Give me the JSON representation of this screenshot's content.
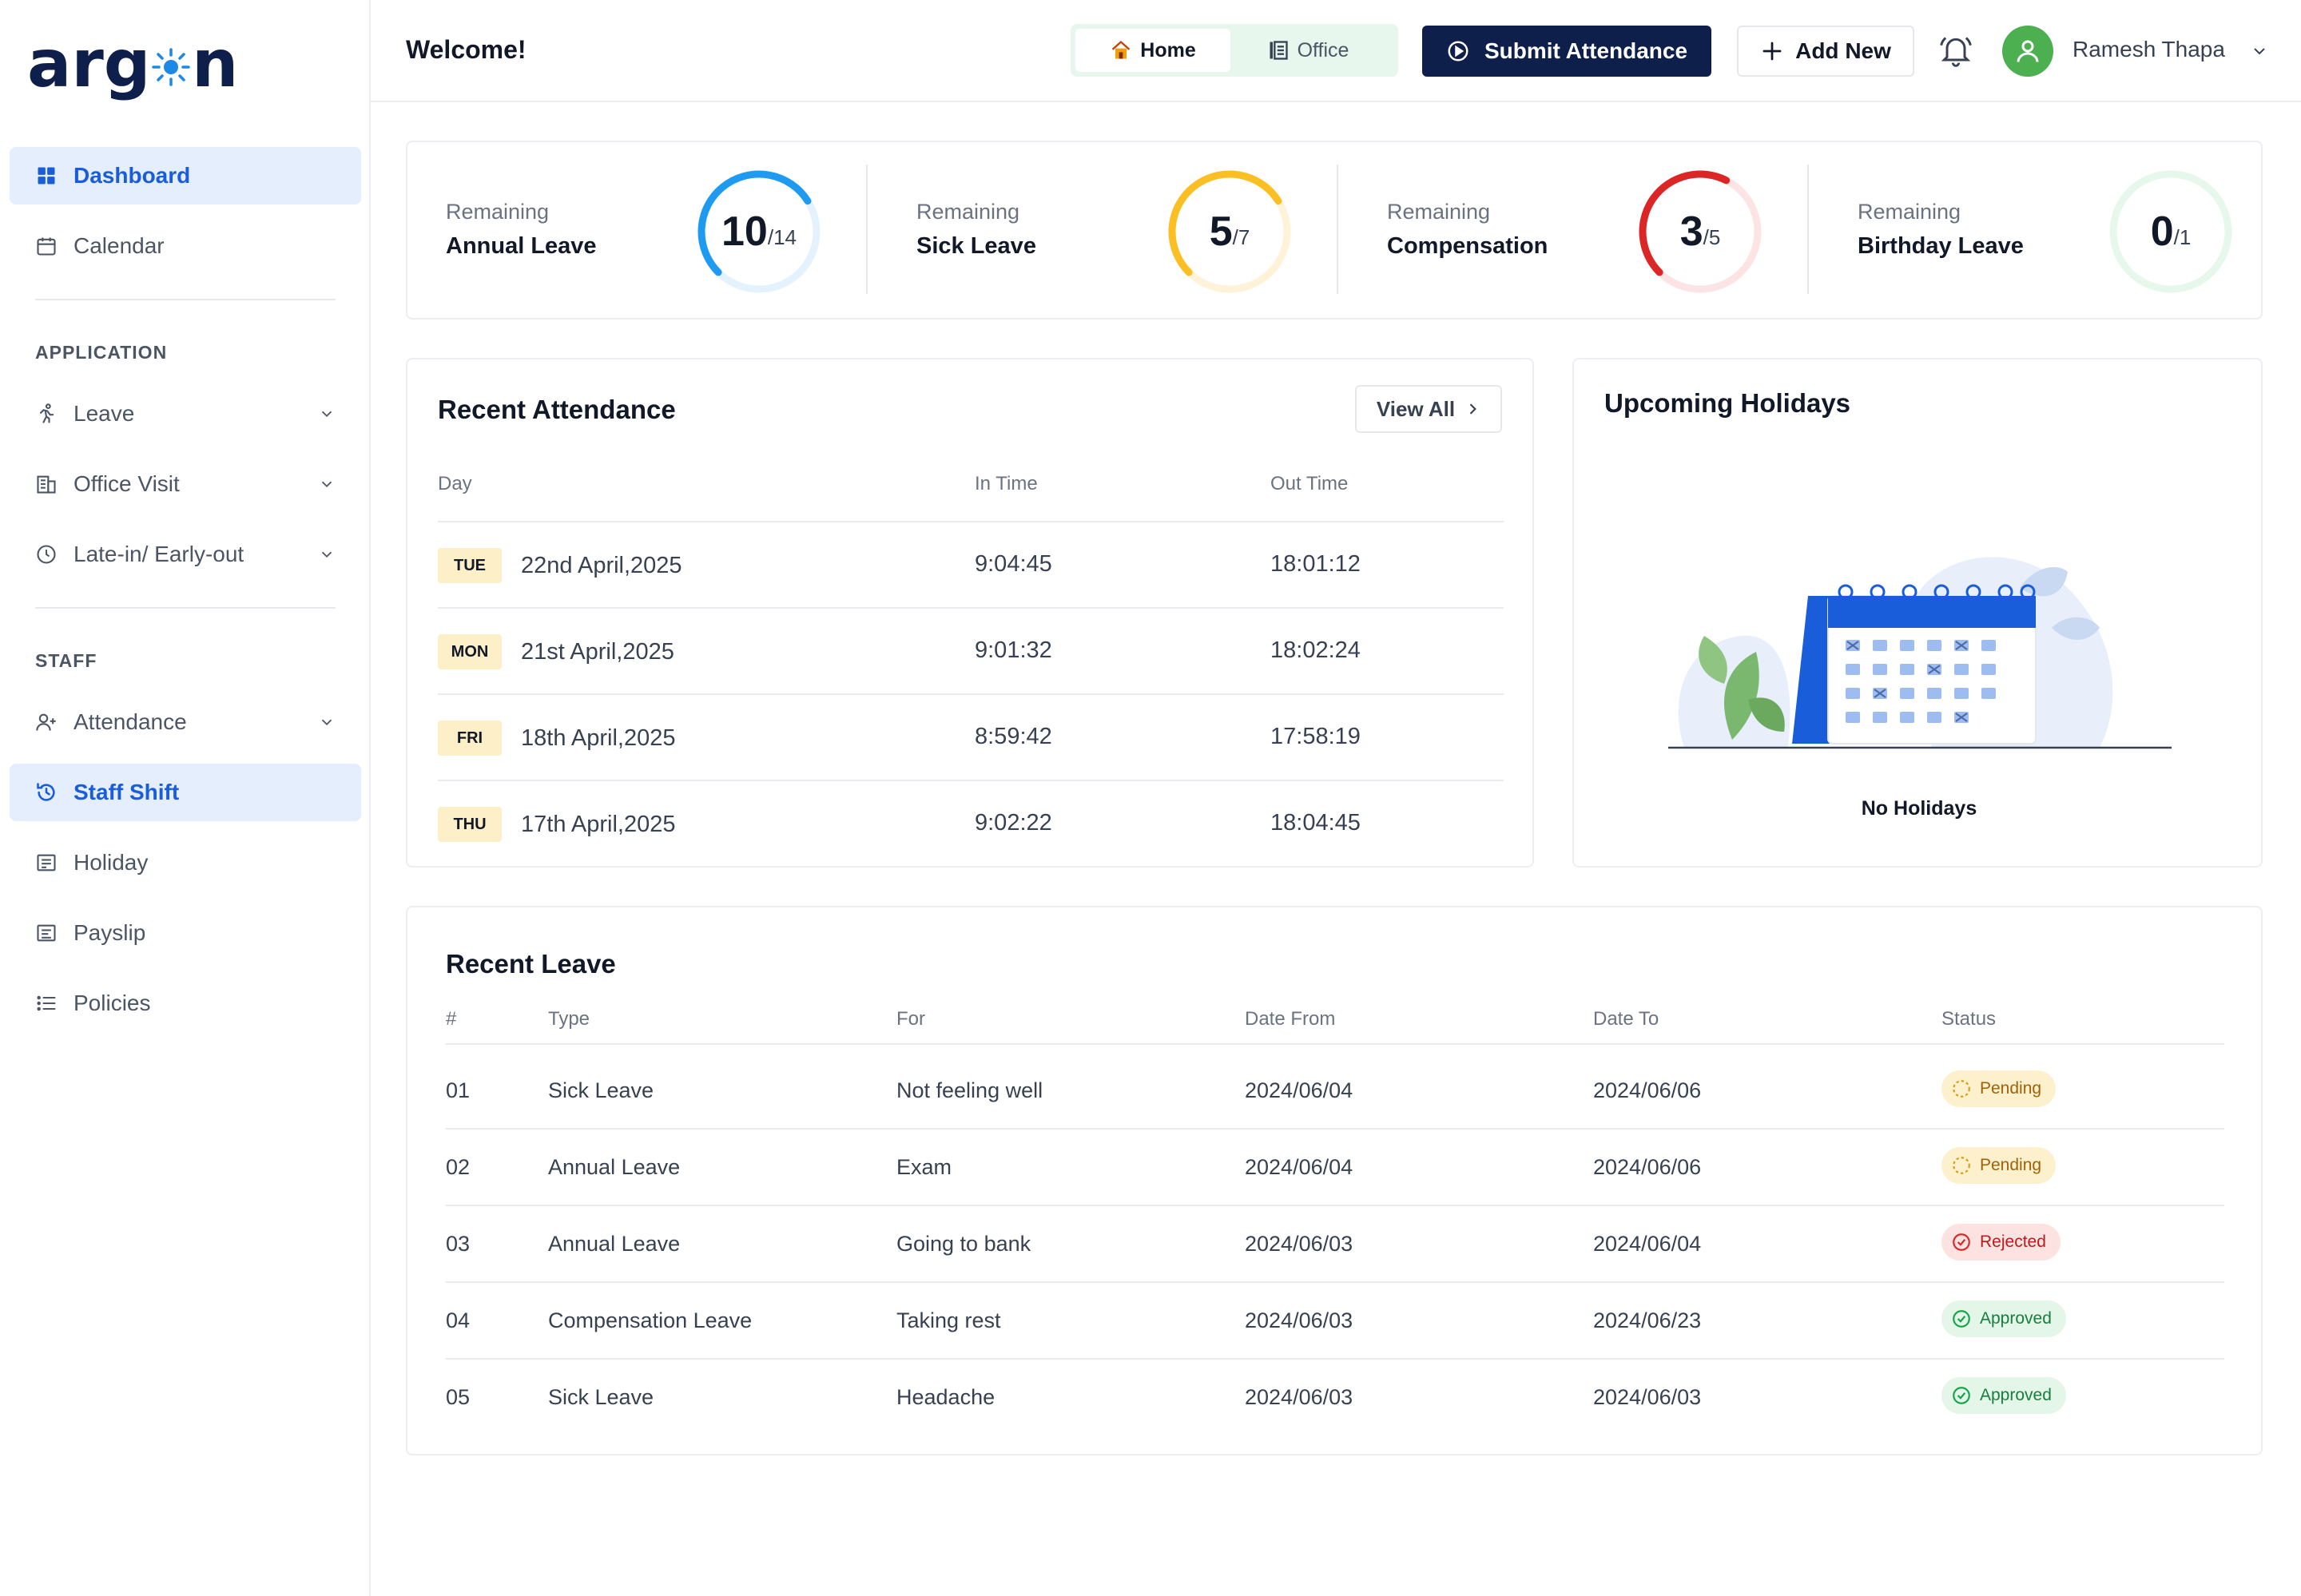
{
  "brand": {
    "logo_text_left": "arg",
    "logo_text_right": "n"
  },
  "sidebar": {
    "items_top": [
      {
        "label": "Dashboard",
        "icon": "grid-icon",
        "active": true
      },
      {
        "label": "Calendar",
        "icon": "calendar-icon",
        "active": false
      }
    ],
    "application_title": "APPLICATION",
    "application_items": [
      {
        "label": "Leave",
        "icon": "running-person-icon"
      },
      {
        "label": "Office Visit",
        "icon": "building-icon"
      },
      {
        "label": "Late-in/ Early-out",
        "icon": "clock-icon"
      }
    ],
    "staff_title": "STAFF",
    "staff_items": [
      {
        "label": "Attendance",
        "icon": "user-plus-icon",
        "active": false
      },
      {
        "label": "Staff Shift",
        "icon": "history-icon",
        "active": true
      },
      {
        "label": "Holiday",
        "icon": "list-box-icon",
        "active": false
      },
      {
        "label": "Payslip",
        "icon": "receipt-icon",
        "active": false
      },
      {
        "label": "Policies",
        "icon": "list-icon",
        "active": false
      }
    ]
  },
  "header": {
    "welcome": "Welcome!",
    "toggle": {
      "home_label": "Home",
      "office_label": "Office",
      "selected": "Home"
    },
    "submit_label": "Submit Attendance",
    "add_label": "Add New",
    "user_name": "Ramesh Thapa"
  },
  "leave_summary": [
    {
      "caption": "Remaining",
      "name": "Annual Leave",
      "remaining": "10",
      "total": "/14",
      "fraction": 0.714,
      "color": "#1e9bf0",
      "track": "#e3f2fd"
    },
    {
      "caption": "Remaining",
      "name": "Sick Leave",
      "remaining": "5",
      "total": "/7",
      "fraction": 0.714,
      "color": "#fbbf24",
      "track": "#fef3d9"
    },
    {
      "caption": "Remaining",
      "name": "Compensation",
      "remaining": "3",
      "total": "/5",
      "fraction": 0.6,
      "color": "#dc2626",
      "track": "#fde4e4"
    },
    {
      "caption": "Remaining",
      "name": "Birthday Leave",
      "remaining": "0",
      "total": "/1",
      "fraction": 0.0,
      "color": "#22c55e",
      "track": "#e6f7ec"
    }
  ],
  "attendance": {
    "title": "Recent Attendance",
    "view_all": "View All",
    "headers": {
      "day": "Day",
      "in": "In Time",
      "out": "Out Time"
    },
    "rows": [
      {
        "dow": "TUE",
        "date": "22nd April,2025",
        "in": "9:04:45",
        "out": "18:01:12"
      },
      {
        "dow": "MON",
        "date": "21st April,2025",
        "in": "9:01:32",
        "out": "18:02:24"
      },
      {
        "dow": "FRI",
        "date": "18th April,2025",
        "in": "8:59:42",
        "out": "17:58:19"
      },
      {
        "dow": "THU",
        "date": "17th April,2025",
        "in": "9:02:22",
        "out": "18:04:45"
      }
    ]
  },
  "holidays": {
    "title": "Upcoming Holidays",
    "empty_text": "No Holidays"
  },
  "leaves": {
    "title": "Recent Leave",
    "headers": {
      "num": "#",
      "type": "Type",
      "for": "For",
      "from": "Date From",
      "to": "Date To",
      "status": "Status"
    },
    "rows": [
      {
        "num": "01",
        "type": "Sick Leave",
        "for": "Not feeling well",
        "from": "2024/06/04",
        "to": "2024/06/06",
        "status": "Pending"
      },
      {
        "num": "02",
        "type": "Annual Leave",
        "for": "Exam",
        "from": "2024/06/04",
        "to": "2024/06/06",
        "status": "Pending"
      },
      {
        "num": "03",
        "type": "Annual Leave",
        "for": "Going to bank",
        "from": "2024/06/03",
        "to": "2024/06/04",
        "status": "Rejected"
      },
      {
        "num": "04",
        "type": "Compensation Leave",
        "for": "Taking rest",
        "from": "2024/06/03",
        "to": "2024/06/23",
        "status": "Approved"
      },
      {
        "num": "05",
        "type": "Sick Leave",
        "for": "Headache",
        "from": "2024/06/03",
        "to": "2024/06/03",
        "status": "Approved"
      }
    ]
  },
  "colors": {
    "primary": "#1a5ddb",
    "navy": "#0d1f4a",
    "active_bg": "#e5eefc"
  }
}
